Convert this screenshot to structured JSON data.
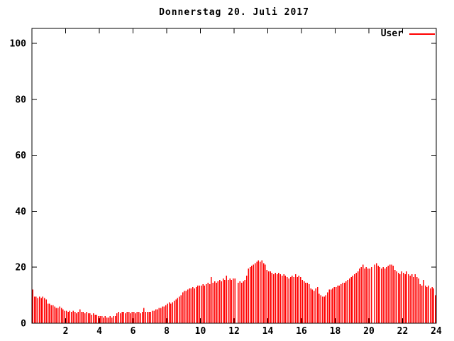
{
  "title": "Donnerstag 20. Juli 2017",
  "legend": {
    "series_label": "User"
  },
  "colors": {
    "series": "#ff0000",
    "axis": "#000000",
    "text": "#000000",
    "background": "#ffffff"
  },
  "chart_data": {
    "type": "bar",
    "style": "impulses",
    "title": "Donnerstag 20. Juli 2017",
    "series_name": "User",
    "xlabel": "",
    "ylabel": "",
    "x_unit": "hour-of-day",
    "xlim": [
      0,
      24
    ],
    "ylim": [
      0,
      105
    ],
    "xticks": [
      2,
      4,
      6,
      8,
      10,
      12,
      14,
      16,
      18,
      20,
      22,
      24
    ],
    "yticks": [
      0,
      20,
      40,
      60,
      80,
      100
    ],
    "grid": false,
    "legend_position": "top-right-inside",
    "points_per_hour": 10,
    "gap_value": 0,
    "gap_indices": [
      121,
      202
    ],
    "values": [
      12,
      9.5,
      9.5,
      9,
      9.5,
      9,
      9.5,
      9,
      8.5,
      7,
      7,
      6.5,
      6.5,
      6,
      5.5,
      5.5,
      6,
      5.5,
      5,
      4.5,
      4.5,
      4,
      4.5,
      4,
      4.5,
      4,
      3.5,
      4,
      5,
      4,
      4,
      3.5,
      4,
      3.5,
      3.5,
      3,
      3.5,
      3,
      3,
      2.5,
      2.5,
      2.5,
      2,
      2.5,
      2,
      2,
      2.5,
      2,
      2.5,
      2.5,
      3.5,
      4,
      3.5,
      4,
      4,
      3.5,
      4,
      4,
      3.5,
      4,
      4,
      3.5,
      4,
      4,
      3.5,
      4,
      5.5,
      4,
      4,
      4,
      4,
      4.5,
      4.5,
      5,
      5,
      5.5,
      5.5,
      6,
      6,
      6.5,
      7,
      7.5,
      7,
      7.5,
      8,
      8.5,
      9,
      9.5,
      10,
      11,
      11.5,
      11.5,
      12,
      12.5,
      12.5,
      13,
      12.5,
      13,
      13.5,
      13.5,
      13.5,
      14,
      13.5,
      14,
      14.5,
      14,
      16.5,
      14.5,
      15,
      14.5,
      15,
      15.5,
      15,
      16,
      15.5,
      17,
      15.5,
      16,
      15.5,
      16,
      16,
      0,
      14.5,
      15,
      14.5,
      15,
      15.5,
      17,
      19.5,
      20,
      20.5,
      21,
      21.5,
      22,
      22.5,
      22,
      22.5,
      21.5,
      21,
      19,
      18.5,
      18.5,
      18,
      17.5,
      18,
      17.5,
      18,
      17.5,
      17,
      17.5,
      17,
      16.5,
      16,
      16.5,
      17,
      16.5,
      17.5,
      16.5,
      17,
      16.5,
      15.5,
      15,
      14.5,
      14.5,
      14,
      12.5,
      12,
      11.5,
      12.5,
      13,
      10.5,
      10,
      9.5,
      9.5,
      10,
      11,
      12,
      12,
      12.5,
      13,
      13,
      13.5,
      13.5,
      14,
      14.5,
      14.5,
      15,
      15.5,
      16,
      16.5,
      17,
      17.5,
      18,
      18.5,
      19.5,
      20,
      21,
      19.5,
      20,
      19.5,
      19.5,
      20,
      0,
      21,
      21.5,
      20.5,
      20,
      19.5,
      20,
      19.5,
      20,
      20.5,
      21,
      21,
      20.5,
      19,
      18.5,
      18,
      17.5,
      18.5,
      18,
      17.5,
      18.5,
      17.5,
      17,
      17.5,
      16.5,
      17.5,
      16.5,
      16,
      14,
      13.5,
      15.5,
      13.5,
      13,
      13.5,
      12.5,
      13,
      12.5,
      10
    ]
  }
}
